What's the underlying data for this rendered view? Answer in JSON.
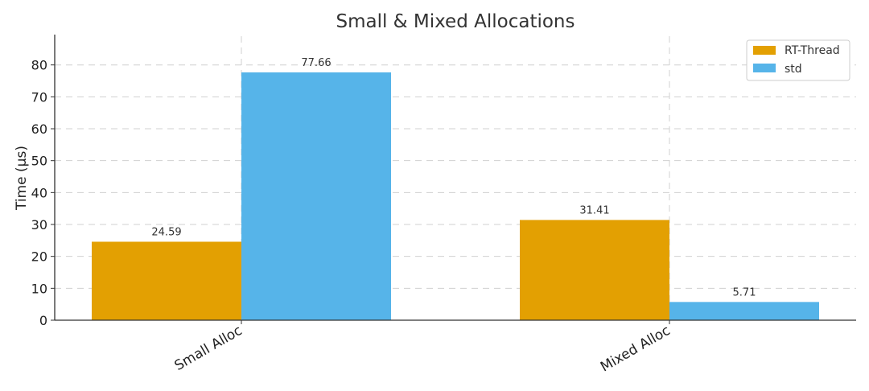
{
  "chart_data": {
    "type": "bar",
    "title": "Small & Mixed Allocations",
    "xlabel": "",
    "ylabel": "Time (µs)",
    "categories": [
      "Small Alloc",
      "Mixed Alloc"
    ],
    "series": [
      {
        "name": "RT-Thread",
        "values": [
          24.59,
          31.41
        ],
        "labels": [
          "24.59",
          "31.41"
        ],
        "color": "#E3A002"
      },
      {
        "name": "std",
        "values": [
          77.66,
          5.71
        ],
        "labels": [
          "77.66",
          "5.71"
        ],
        "color": "#56B4E9"
      }
    ],
    "ylim": [
      0,
      89
    ],
    "yticks": [
      0,
      10,
      20,
      30,
      40,
      50,
      60,
      70,
      80
    ],
    "grid": true,
    "legend_position": "top-right"
  }
}
